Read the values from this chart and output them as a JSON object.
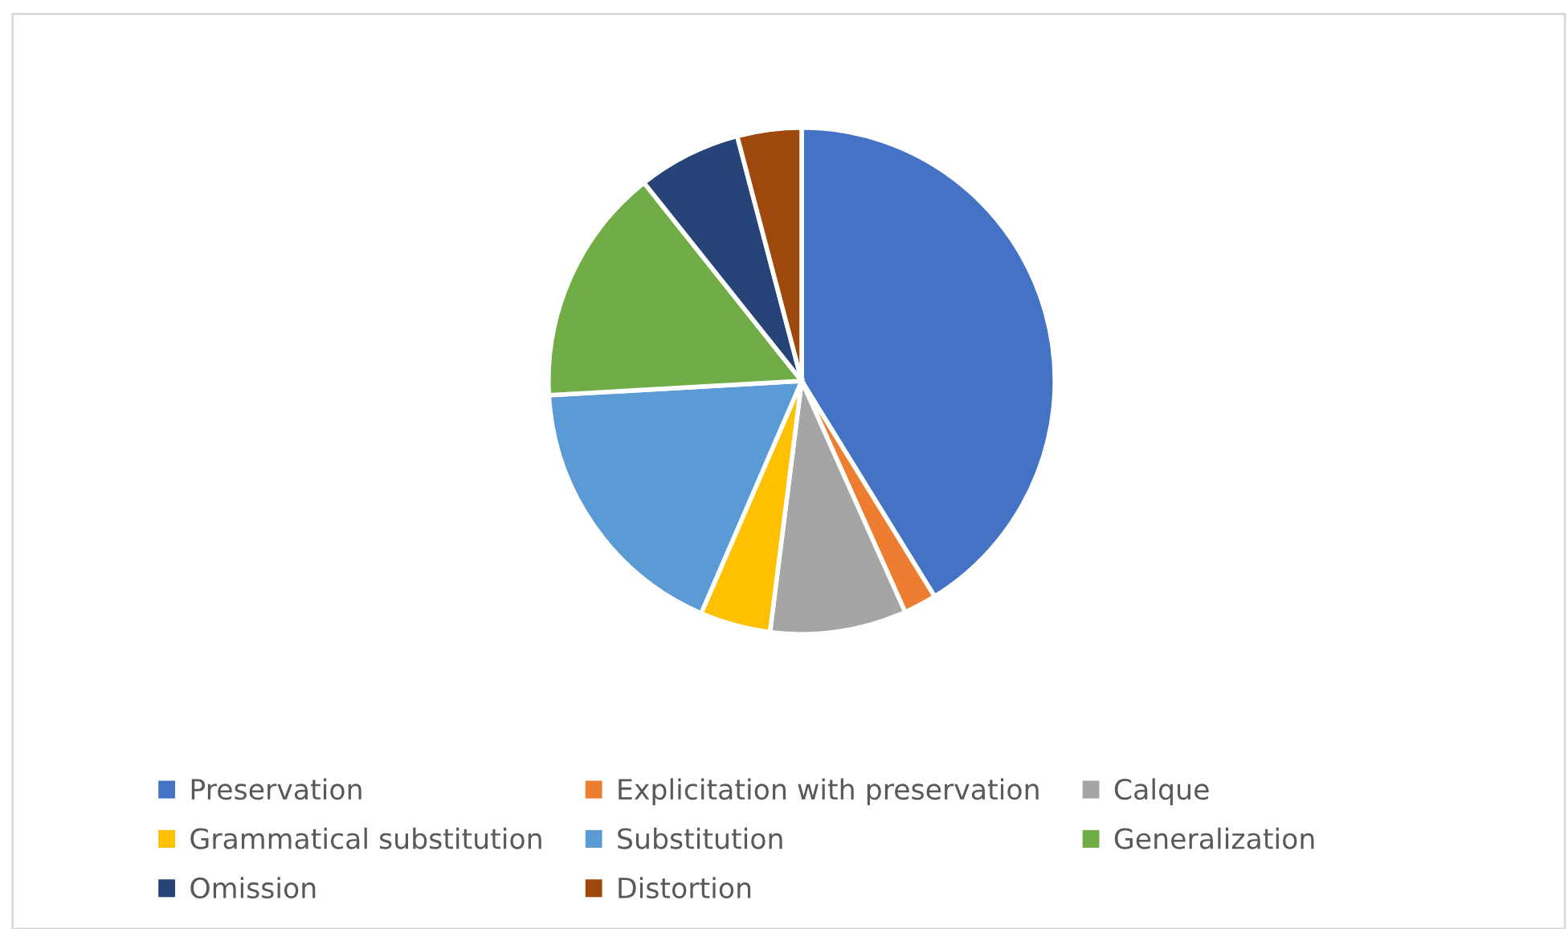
{
  "chart_data": {
    "type": "pie",
    "categories": [
      "Preservation",
      "Explicitation with preservation",
      "Calque",
      "Grammatical substitution",
      "Substitution",
      "Generalization",
      "Omission",
      "Distortion"
    ],
    "values": [
      41.2,
      2.1,
      8.7,
      4.5,
      17.6,
      15.2,
      6.6,
      4.1
    ],
    "colors": [
      "#4472c4",
      "#ed7d31",
      "#a5a5a5",
      "#ffc000",
      "#5b9bd5",
      "#70ad47",
      "#264478",
      "#9e480e"
    ],
    "legend": "bottom"
  }
}
